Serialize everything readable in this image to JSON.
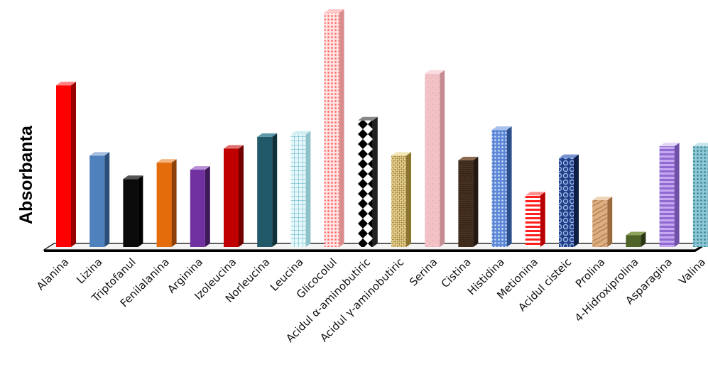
{
  "chart_data": {
    "type": "bar",
    "title": "",
    "xlabel": "",
    "ylabel": "Absorbanta",
    "grid": false,
    "legend": "none",
    "ylim": [
      0,
      100
    ],
    "categories": [
      "Alanina",
      "Lizina",
      "Triptofanul",
      "Fenilalanina",
      "Arginina",
      "Izoleucina",
      "Norleucina",
      "Leucina",
      "Glicocolul",
      "Acidul α-aminobutiric",
      "Acidul γ-aminobutiric",
      "Serina",
      "Cistina",
      "Histidina",
      "Metionina",
      "Acidul cisteic",
      "Prolina",
      "4-Hidroxiprolina",
      "Asparagina",
      "Valina"
    ],
    "values": [
      69,
      39,
      29,
      36,
      33,
      42,
      47,
      48,
      100,
      54,
      39,
      74,
      37,
      50,
      22,
      38,
      20,
      5,
      43,
      43
    ],
    "bar_styles": [
      {
        "front": "#ff0000",
        "side": "#990000",
        "top": "#ff8080",
        "pattern": "solid"
      },
      {
        "front": "#4f81bd",
        "side": "#2c4f7a",
        "top": "#a7c0e0",
        "pattern": "solid"
      },
      {
        "front": "#0a0a0a",
        "side": "#000000",
        "top": "#555555",
        "pattern": "solid"
      },
      {
        "front": "#e46c0a",
        "side": "#8f4006",
        "top": "#f5b27a",
        "pattern": "solid"
      },
      {
        "front": "#7030a0",
        "side": "#3e1a5a",
        "top": "#b88fd6",
        "pattern": "solid"
      },
      {
        "front": "#c00000",
        "side": "#6e0000",
        "top": "#e07070",
        "pattern": "solid"
      },
      {
        "front": "#215968",
        "side": "#10313a",
        "top": "#5c98a8",
        "pattern": "solid"
      },
      {
        "front": "#e8f8fa",
        "side": "#8ec2cb",
        "top": "#cfeef2",
        "pattern": "grid",
        "ink": "#4aacc6"
      },
      {
        "front": "#ffe4e4",
        "side": "#d98c8c",
        "top": "#ffc9c9",
        "pattern": "dots",
        "ink": "#ff6b6b"
      },
      {
        "front": "#ffffff",
        "side": "#202020",
        "top": "#888888",
        "pattern": "diamond",
        "ink": "#000000"
      },
      {
        "front": "#e8d69a",
        "side": "#8a7430",
        "top": "#f2e6b8",
        "pattern": "weave",
        "ink": "#a88a3e"
      },
      {
        "front": "#f2c2c6",
        "side": "#c48c92",
        "top": "#f8dde0",
        "pattern": "speckle",
        "ink": "#dea5aa"
      },
      {
        "front": "#4a3322",
        "side": "#251810",
        "top": "#8a6a50",
        "pattern": "wood",
        "ink": "#2d1e12"
      },
      {
        "front": "#5b86d6",
        "side": "#2c4f8c",
        "top": "#a9c1ee",
        "pattern": "dots",
        "ink": "#c8d9f7"
      },
      {
        "front": "#ffffff",
        "side": "#b80000",
        "top": "#ff9090",
        "pattern": "hstripes",
        "ink": "#ff2020"
      },
      {
        "front": "#1f3f86",
        "side": "#0e1f45",
        "top": "#7892d0",
        "pattern": "circles",
        "ink": "#9fb6ea"
      },
      {
        "front": "#dcae82",
        "side": "#9b6b3e",
        "top": "#efd4b8",
        "pattern": "oak",
        "ink": "#b07a4a"
      },
      {
        "front": "#4f6228",
        "side": "#2a3514",
        "top": "#8ea35a",
        "pattern": "solid"
      },
      {
        "front": "#c5a8f0",
        "side": "#6f4fa8",
        "top": "#e3d5f8",
        "pattern": "hstripes",
        "ink": "#8f6ad0"
      },
      {
        "front": "#8ec8d4",
        "side": "#3f7c89",
        "top": "#c6e6ec",
        "pattern": "dots",
        "ink": "#3f8a9a"
      }
    ]
  }
}
